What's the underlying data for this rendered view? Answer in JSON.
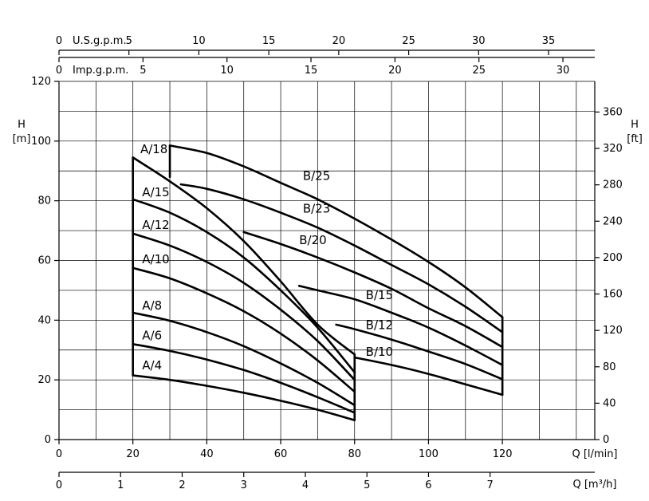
{
  "chart_data": {
    "type": "line",
    "title": "",
    "x": {
      "label": "Q [l/min]",
      "range": [
        0,
        145
      ],
      "ticks": [
        0,
        20,
        40,
        60,
        80,
        100,
        120
      ],
      "grid_step": 10
    },
    "y": {
      "label_top": "H",
      "label_unit": "[m]",
      "range": [
        0,
        120
      ],
      "ticks": [
        0,
        20,
        40,
        60,
        80,
        100,
        120
      ],
      "grid_step": 10
    },
    "y_right": {
      "label_top": "H",
      "label_unit": "[ft]",
      "ticks": [
        0,
        40,
        80,
        120,
        160,
        200,
        240,
        280,
        320,
        360
      ]
    },
    "x_bottom2": {
      "label": "Q [m³/h]",
      "ticks": [
        0,
        1,
        2,
        3,
        4,
        5,
        6,
        7
      ]
    },
    "x_top_usgpm": {
      "label": "U.S.g.p.m.",
      "zero_label": "0",
      "ticks": [
        5,
        10,
        15,
        20,
        25,
        30,
        35
      ]
    },
    "x_top_impgpm": {
      "label": "Imp.g.p.m.",
      "zero_label": "0",
      "ticks": [
        5,
        10,
        15,
        20,
        25,
        30
      ]
    },
    "series": [
      {
        "name": "A/4",
        "label_at": [
          22.5,
          23.5
        ],
        "points": [
          [
            20,
            21.5
          ],
          [
            30,
            20
          ],
          [
            40,
            18
          ],
          [
            50,
            15.7
          ],
          [
            60,
            13
          ],
          [
            70,
            10
          ],
          [
            80,
            6.5
          ]
        ]
      },
      {
        "name": "A/6",
        "label_at": [
          22.5,
          33.5
        ],
        "points": [
          [
            20,
            32
          ],
          [
            30,
            29.7
          ],
          [
            40,
            26.8
          ],
          [
            50,
            23.3
          ],
          [
            60,
            19
          ],
          [
            70,
            14.2
          ],
          [
            80,
            9
          ]
        ]
      },
      {
        "name": "A/8",
        "label_at": [
          22.5,
          43.5
        ],
        "points": [
          [
            20,
            42.5
          ],
          [
            30,
            39.8
          ],
          [
            40,
            36
          ],
          [
            50,
            31.3
          ],
          [
            60,
            25.5
          ],
          [
            70,
            19
          ],
          [
            80,
            11.5
          ]
        ]
      },
      {
        "name": "A/10",
        "label_at": [
          22.5,
          59
        ],
        "points": [
          [
            20,
            57.5
          ],
          [
            30,
            54
          ],
          [
            40,
            49
          ],
          [
            50,
            43
          ],
          [
            60,
            35.5
          ],
          [
            70,
            26.5
          ],
          [
            80,
            16
          ]
        ]
      },
      {
        "name": "A/12",
        "label_at": [
          22.5,
          70.5
        ],
        "points": [
          [
            20,
            69
          ],
          [
            30,
            65
          ],
          [
            40,
            59.5
          ],
          [
            50,
            52.5
          ],
          [
            60,
            43.5
          ],
          [
            70,
            33
          ],
          [
            80,
            20
          ]
        ]
      },
      {
        "name": "A/15",
        "label_at": [
          22.5,
          81.5
        ],
        "points": [
          [
            20,
            80.5
          ],
          [
            30,
            76
          ],
          [
            40,
            69.5
          ],
          [
            50,
            61
          ],
          [
            60,
            50
          ],
          [
            70,
            37.5
          ],
          [
            80,
            22.5
          ]
        ]
      },
      {
        "name": "A/18",
        "label_at": [
          22,
          96
        ],
        "points": [
          [
            20,
            94.5
          ],
          [
            30,
            86.5
          ],
          [
            40,
            77.5
          ],
          [
            50,
            66.5
          ],
          [
            60,
            53
          ],
          [
            70,
            38.5
          ],
          [
            80,
            28.5
          ]
        ]
      },
      {
        "name": "B/10",
        "label_at": [
          83,
          28
        ],
        "points": [
          [
            80,
            27.5
          ],
          [
            90,
            25
          ],
          [
            100,
            22
          ],
          [
            110,
            18.5
          ],
          [
            120,
            15
          ]
        ]
      },
      {
        "name": "B/12",
        "label_at": [
          83,
          37
        ],
        "points": [
          [
            75,
            38.5
          ],
          [
            80,
            37
          ],
          [
            90,
            33.5
          ],
          [
            100,
            29.5
          ],
          [
            110,
            25.3
          ],
          [
            120,
            20.2
          ]
        ]
      },
      {
        "name": "B/15",
        "label_at": [
          83,
          47
        ],
        "points": [
          [
            65,
            51.5
          ],
          [
            70,
            50
          ],
          [
            80,
            47
          ],
          [
            90,
            42.5
          ],
          [
            100,
            37.5
          ],
          [
            110,
            31.5
          ],
          [
            120,
            25
          ]
        ]
      },
      {
        "name": "B/20",
        "label_at": [
          65,
          65.5
        ],
        "points": [
          [
            50,
            69.5
          ],
          [
            60,
            65.5
          ],
          [
            70,
            61
          ],
          [
            80,
            56
          ],
          [
            90,
            50.5
          ],
          [
            100,
            44
          ],
          [
            110,
            38
          ],
          [
            120,
            31
          ]
        ]
      },
      {
        "name": "B/23",
        "label_at": [
          66,
          76
        ],
        "points": [
          [
            33,
            85.5
          ],
          [
            40,
            84
          ],
          [
            50,
            80.5
          ],
          [
            60,
            76
          ],
          [
            70,
            71
          ],
          [
            80,
            65
          ],
          [
            90,
            58.5
          ],
          [
            100,
            52
          ],
          [
            110,
            44.5
          ],
          [
            120,
            36
          ]
        ]
      },
      {
        "name": "B/25",
        "label_at": [
          66,
          87
        ],
        "points": [
          [
            30,
            98.5
          ],
          [
            40,
            96
          ],
          [
            50,
            91.5
          ],
          [
            60,
            86
          ],
          [
            70,
            80.5
          ],
          [
            80,
            74
          ],
          [
            90,
            67
          ],
          [
            100,
            59.5
          ],
          [
            110,
            51
          ],
          [
            120,
            41
          ]
        ]
      }
    ]
  }
}
